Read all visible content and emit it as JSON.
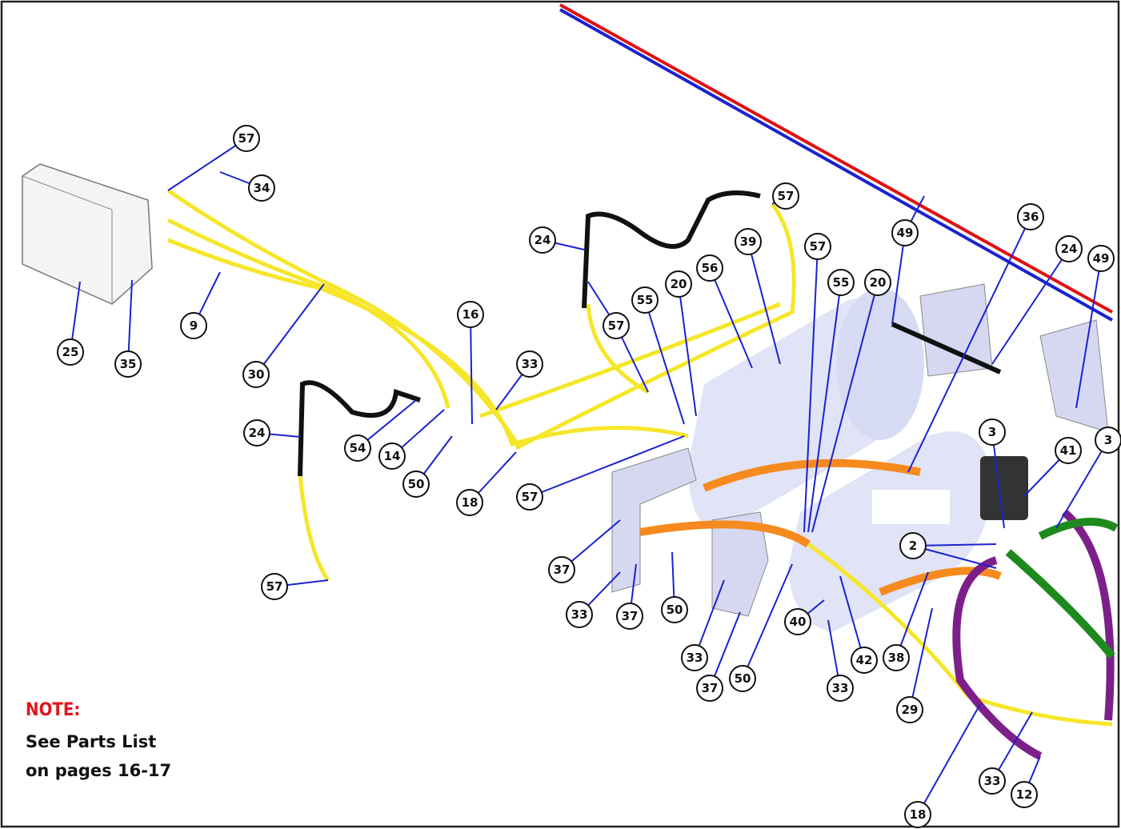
{
  "callouts": [
    {
      "label": "57"
    },
    {
      "label": "34"
    },
    {
      "label": "25"
    },
    {
      "label": "35"
    },
    {
      "label": "9"
    },
    {
      "label": "30"
    },
    {
      "label": "24"
    },
    {
      "label": "57"
    },
    {
      "label": "39"
    },
    {
      "label": "56"
    },
    {
      "label": "20"
    },
    {
      "label": "55"
    },
    {
      "label": "57"
    },
    {
      "label": "16"
    },
    {
      "label": "33"
    },
    {
      "label": "24"
    },
    {
      "label": "54"
    },
    {
      "label": "14"
    },
    {
      "label": "50"
    },
    {
      "label": "18"
    },
    {
      "label": "57"
    },
    {
      "label": "57"
    },
    {
      "label": "57"
    },
    {
      "label": "55"
    },
    {
      "label": "20"
    },
    {
      "label": "49"
    },
    {
      "label": "36"
    },
    {
      "label": "24"
    },
    {
      "label": "49"
    },
    {
      "label": "3"
    },
    {
      "label": "41"
    },
    {
      "label": "3"
    },
    {
      "label": "2"
    },
    {
      "label": "37"
    },
    {
      "label": "33"
    },
    {
      "label": "37"
    },
    {
      "label": "50"
    },
    {
      "label": "33"
    },
    {
      "label": "37"
    },
    {
      "label": "50"
    },
    {
      "label": "40"
    },
    {
      "label": "33"
    },
    {
      "label": "42"
    },
    {
      "label": "38"
    },
    {
      "label": "29"
    },
    {
      "label": "18"
    },
    {
      "label": "33"
    },
    {
      "label": "12"
    }
  ],
  "note": {
    "title": "NOTE:",
    "lines": [
      "See Parts List",
      "on pages 16-17"
    ]
  }
}
